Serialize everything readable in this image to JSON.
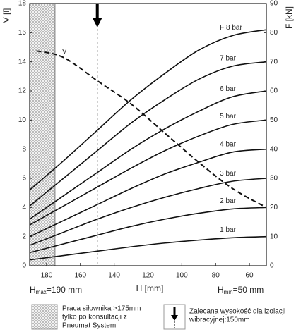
{
  "chart_data": {
    "type": "line",
    "xlabel": "H [mm]",
    "ylabel": "V [l]",
    "y2label": "F [kN]",
    "xlim": [
      190,
      50
    ],
    "xticks": [
      180,
      160,
      140,
      120,
      100,
      80,
      60
    ],
    "ylim": [
      0,
      18
    ],
    "yticks": [
      0,
      2,
      4,
      6,
      8,
      10,
      12,
      14,
      16,
      18
    ],
    "y2lim": [
      0,
      90
    ],
    "y2ticks": [
      0,
      10,
      20,
      30,
      40,
      50,
      60,
      70,
      80,
      90
    ],
    "x": [
      190,
      170,
      150,
      130,
      110,
      90,
      70,
      50
    ],
    "series": [
      {
        "name": "F 8 bar",
        "color": "#111111",
        "axis": "y2",
        "values": [
          26,
          36,
          46.5,
          57,
          66,
          74,
          79,
          81
        ]
      },
      {
        "name": "7 bar",
        "color": "#111111",
        "axis": "y2",
        "values": [
          20.5,
          30,
          39.5,
          49,
          57,
          64,
          68.5,
          70
        ]
      },
      {
        "name": "6 bar",
        "color": "#111111",
        "axis": "y2",
        "values": [
          16,
          24,
          32,
          40,
          47,
          53,
          58,
          60
        ]
      },
      {
        "name": "5 bar",
        "color": "#111111",
        "axis": "y2",
        "values": [
          14,
          20.5,
          27,
          33.5,
          39.5,
          44.5,
          48.5,
          50
        ]
      },
      {
        "name": "4 bar",
        "color": "#111111",
        "axis": "y2",
        "values": [
          10,
          15.5,
          21,
          26.5,
          31.5,
          35.5,
          39,
          40
        ]
      },
      {
        "name": "3 bar",
        "color": "#111111",
        "axis": "y2",
        "values": [
          7,
          11.5,
          16,
          20,
          23.5,
          26.5,
          29,
          30
        ]
      },
      {
        "name": "2 bar",
        "color": "#111111",
        "axis": "y2",
        "values": [
          4.5,
          7.5,
          10.5,
          13.5,
          16,
          18,
          19.5,
          20
        ]
      },
      {
        "name": "1 bar",
        "color": "#111111",
        "axis": "y2",
        "values": [
          2,
          3.5,
          5,
          6.5,
          7.8,
          8.8,
          9.6,
          10
        ]
      },
      {
        "name": "V",
        "color": "#111111",
        "axis": "y",
        "dashed": true,
        "x": [
          186,
          170,
          150,
          130,
          110,
          90,
          70,
          50
        ],
        "values": [
          14.75,
          14.3,
          12.7,
          11.1,
          9.1,
          7.1,
          5.3,
          4.0
        ]
      }
    ],
    "hatched_range": [
      190,
      175
    ],
    "recommended_x": 150,
    "hmax": {
      "h": "H",
      "sub": "max",
      "rest": "=190 mm"
    },
    "hmin": {
      "h": "H",
      "sub": "min",
      "rest": "=50 mm"
    },
    "legend_hatch": [
      "Praca siłownika >175mm",
      "tylko po konsultacji z",
      "Pneumat System"
    ],
    "legend_arrow": [
      "Zalecana wysokość dla izolacji",
      "wibracyjnej:150mm"
    ]
  }
}
